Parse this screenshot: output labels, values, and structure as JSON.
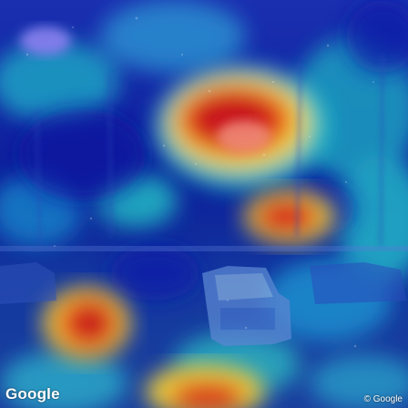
{
  "watermark": {
    "logo_text": "Google",
    "copyright_text": "© Google"
  },
  "heatmap": {
    "colors": {
      "cold": "#0a1a8c",
      "cool": "#1e5bd6",
      "mid": "#22c9c9",
      "warm": "#f2d23a",
      "hot": "#d81e1e"
    }
  }
}
